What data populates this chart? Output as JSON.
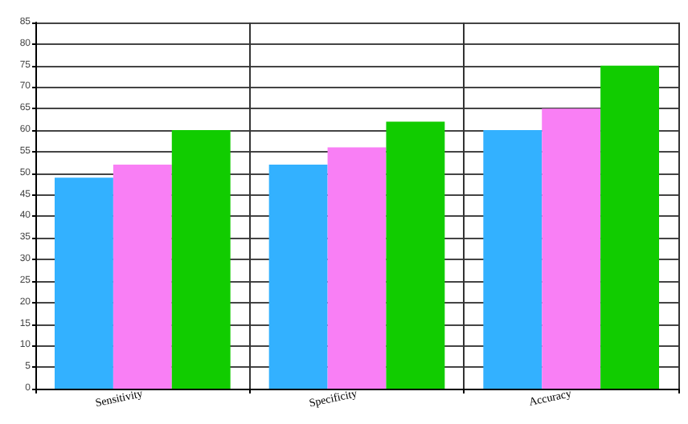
{
  "chart_data": {
    "type": "bar",
    "categories": [
      "Sensitivity",
      "Specificity",
      "Accuracy"
    ],
    "series": [
      {
        "color": "#33b1ff",
        "values": [
          49,
          52,
          60
        ]
      },
      {
        "color": "#f97ff5",
        "values": [
          52,
          56,
          65
        ]
      },
      {
        "color": "#11cc00",
        "values": [
          60,
          62,
          75
        ]
      }
    ],
    "ylim": [
      0,
      85
    ],
    "yticks": [
      0,
      5,
      10,
      15,
      20,
      25,
      30,
      35,
      40,
      45,
      50,
      55,
      60,
      65,
      70,
      75,
      80,
      85
    ],
    "grid": true
  }
}
